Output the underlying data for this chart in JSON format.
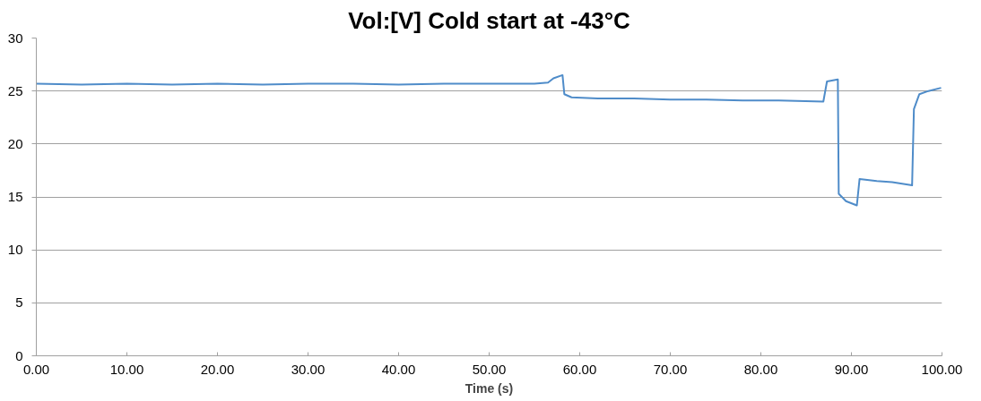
{
  "chart_data": {
    "type": "line",
    "title": "Vol:[V] Cold start at -43°C",
    "xlabel": "Time (s)",
    "series": [
      {
        "color": "#4f8cc9",
        "x": [
          0,
          5,
          10,
          15,
          20,
          25,
          30,
          35,
          40,
          45,
          50,
          55,
          56.5,
          57.1,
          58.1,
          58.3,
          59.1,
          62,
          66,
          70,
          74,
          78,
          82,
          86.9,
          87.3,
          88.5,
          88.6,
          89.4,
          90.6,
          90.9,
          92.8,
          94.5,
          96.7,
          96.9,
          97.5,
          98.5,
          99.9
        ],
        "values": [
          25.7,
          25.6,
          25.7,
          25.6,
          25.7,
          25.6,
          25.7,
          25.7,
          25.6,
          25.7,
          25.7,
          25.7,
          25.8,
          26.2,
          26.5,
          24.7,
          24.4,
          24.3,
          24.3,
          24.2,
          24.2,
          24.1,
          24.1,
          24.0,
          25.9,
          26.1,
          15.3,
          14.6,
          14.2,
          16.7,
          16.5,
          16.4,
          16.1,
          23.3,
          24.7,
          25.0,
          25.3
        ]
      }
    ],
    "xlim": [
      0,
      100
    ],
    "xticks": [
      {
        "value": 0,
        "label": "0.00"
      },
      {
        "value": 10,
        "label": "10.00"
      },
      {
        "value": 20,
        "label": "20.00"
      },
      {
        "value": 30,
        "label": "30.00"
      },
      {
        "value": 40,
        "label": "40.00"
      },
      {
        "value": 50,
        "label": "50.00"
      },
      {
        "value": 60,
        "label": "60.00"
      },
      {
        "value": 70,
        "label": "70.00"
      },
      {
        "value": 80,
        "label": "80.00"
      },
      {
        "value": 90,
        "label": "90.00"
      },
      {
        "value": 100,
        "label": "100.00"
      }
    ],
    "ylim": [
      0,
      30
    ],
    "yticks": [
      0,
      5,
      10,
      15,
      20,
      25,
      30
    ],
    "grid": "y",
    "marker": "none",
    "line_style": "solid"
  }
}
